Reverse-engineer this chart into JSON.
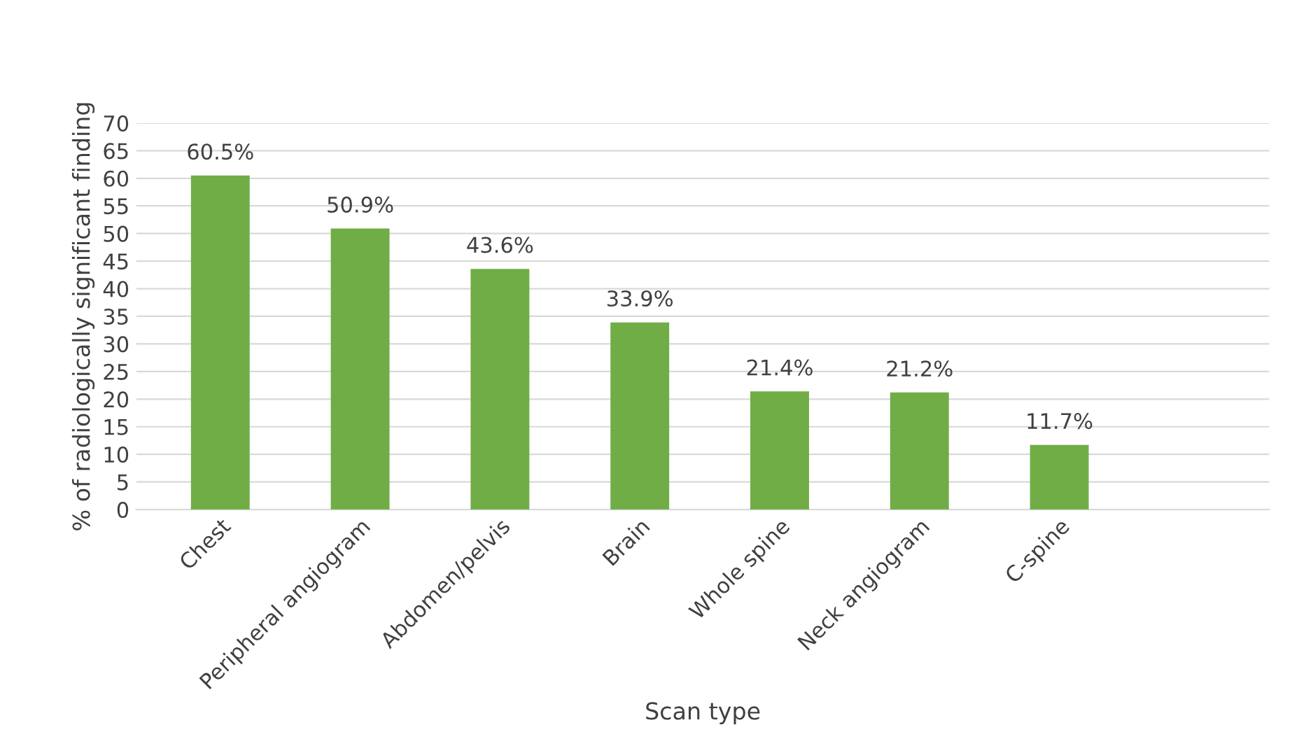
{
  "chart_data": {
    "type": "bar",
    "xlabel": "Scan type",
    "ylabel": "% of radiologically significant finding",
    "categories": [
      "Chest",
      "Peripheral angiogram",
      "Abdomen/pelvis",
      "Brain",
      "Whole spine",
      "Neck angiogram",
      "C-spine",
      null
    ],
    "values": [
      60.5,
      50.9,
      43.6,
      33.9,
      21.4,
      21.2,
      11.7,
      null
    ],
    "value_labels": [
      "60.5%",
      "50.9%",
      "43.6%",
      "33.9%",
      "21.4%",
      "21.2%",
      "11.7%",
      null
    ],
    "color": "#70ad47",
    "ylim": [
      0,
      70
    ],
    "yticks": [
      0,
      5,
      10,
      15,
      20,
      25,
      30,
      35,
      40,
      45,
      50,
      55,
      60,
      65,
      70
    ],
    "grid": "y",
    "legend": false
  }
}
